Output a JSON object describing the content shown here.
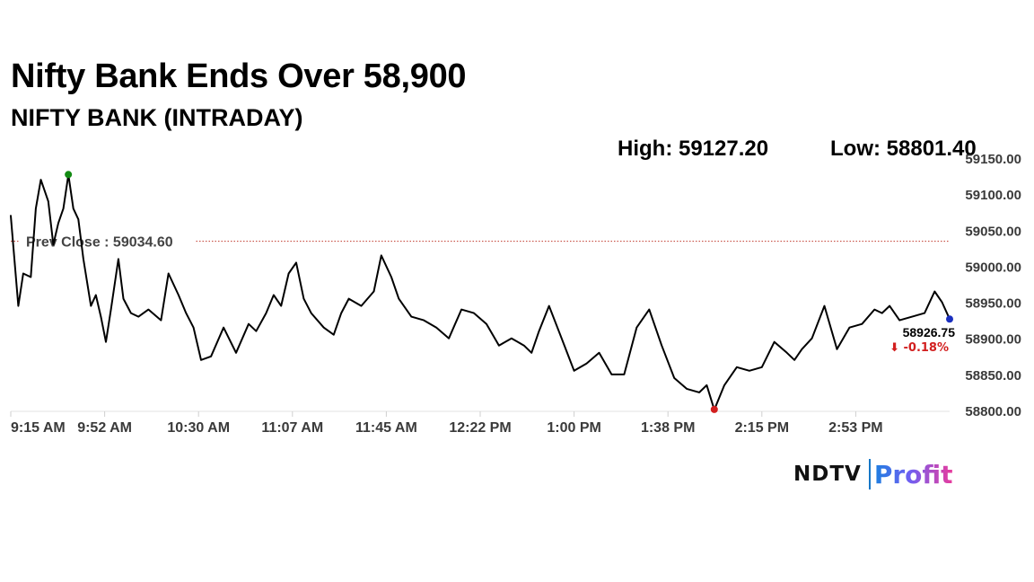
{
  "header": {
    "headline": "Nifty Bank Ends Over 58,900",
    "index_name": "NIFTY BANK (INTRADAY)"
  },
  "stats": {
    "high": "High: 59127.20",
    "low": "Low: 58801.40"
  },
  "chart_data": {
    "type": "line",
    "title": "NIFTY BANK (INTRADAY)",
    "x_tick_labels": [
      "9:15 AM",
      "9:52 AM",
      "10:30 AM",
      "11:07 AM",
      "11:45 AM",
      "12:22 PM",
      "1:00 PM",
      "1:38 PM",
      "2:15 PM",
      "2:53 PM"
    ],
    "y_tick_labels": [
      "59150.00",
      "59100.00",
      "59050.00",
      "59000.00",
      "58950.00",
      "58900.00",
      "58850.00",
      "58800.00"
    ],
    "ylim": [
      58800,
      59150
    ],
    "xlim_minutes_from_open": [
      0,
      375
    ],
    "grid": false,
    "prev_close": {
      "label": "Prev Close : 59034.60",
      "value": 59034.6,
      "color": "#c0392b"
    },
    "high_point": {
      "time": "9:38 AM",
      "value": 59127.2,
      "color": "#138a13"
    },
    "low_point": {
      "time": "1:56 PM",
      "value": 58801.4,
      "color": "#d21f1f"
    },
    "last_point": {
      "time": "3:30 PM",
      "value": 58926.75,
      "label": "58926.75",
      "change_label": "⬇ -0.18%",
      "change_color": "#d21f1f",
      "color": "#1a2fbf"
    },
    "series": [
      {
        "x": [
          "9:15",
          "9:18",
          "9:20",
          "9:23",
          "9:25",
          "9:27",
          "9:30",
          "9:32",
          "9:34",
          "9:36",
          "9:38",
          "9:40",
          "9:42",
          "9:44",
          "9:47",
          "9:49",
          "9:51",
          "9:53",
          "9:55",
          "9:58",
          "10:00",
          "10:03",
          "10:06",
          "10:10",
          "10:15",
          "10:18",
          "10:22",
          "10:25",
          "10:28",
          "10:31",
          "10:35",
          "10:40",
          "10:45",
          "10:50",
          "10:53",
          "10:57",
          "11:00",
          "11:03",
          "11:06",
          "11:09",
          "11:12",
          "11:15",
          "11:20",
          "11:24",
          "11:27",
          "11:30",
          "11:35",
          "11:40",
          "11:43",
          "11:47",
          "11:50",
          "11:55",
          "12:00",
          "12:05",
          "12:10",
          "12:15",
          "12:20",
          "12:25",
          "12:30",
          "12:35",
          "12:40",
          "12:43",
          "12:46",
          "12:50",
          "12:55",
          "1:00",
          "1:05",
          "1:10",
          "1:15",
          "1:20",
          "1:25",
          "1:30",
          "1:35",
          "1:40",
          "1:45",
          "1:50",
          "1:53",
          "1:56",
          "2:00",
          "2:05",
          "2:10",
          "2:15",
          "2:20",
          "2:25",
          "2:28",
          "2:31",
          "2:35",
          "2:40",
          "2:45",
          "2:50",
          "2:55",
          "3:00",
          "3:03",
          "3:06",
          "3:10",
          "3:15",
          "3:20",
          "3:24",
          "3:27",
          "3:30"
        ],
        "values": [
          59070,
          58945,
          58990,
          58985,
          59080,
          59120,
          59090,
          59030,
          59060,
          59080,
          59127,
          59080,
          59065,
          59010,
          58945,
          58960,
          58930,
          58895,
          58940,
          59010,
          58955,
          58935,
          58930,
          58940,
          58925,
          58990,
          58960,
          58935,
          58915,
          58870,
          58875,
          58915,
          58880,
          58920,
          58910,
          58935,
          58960,
          58945,
          58990,
          59005,
          58955,
          58935,
          58915,
          58905,
          58935,
          58955,
          58945,
          58965,
          59015,
          58985,
          58955,
          58930,
          58925,
          58915,
          58900,
          58940,
          58935,
          58920,
          58890,
          58900,
          58890,
          58880,
          58910,
          58945,
          58900,
          58855,
          58865,
          58880,
          58850,
          58850,
          58915,
          58940,
          58890,
          58845,
          58830,
          58825,
          58835,
          58801,
          58835,
          58860,
          58855,
          58860,
          58895,
          58880,
          58870,
          58885,
          58900,
          58945,
          58885,
          58915,
          58920,
          58940,
          58935,
          58945,
          58925,
          58930,
          58935,
          58965,
          58950,
          58926.75
        ]
      }
    ]
  },
  "branding": {
    "logo_main": "NDTV",
    "logo_sub": "Profit"
  }
}
